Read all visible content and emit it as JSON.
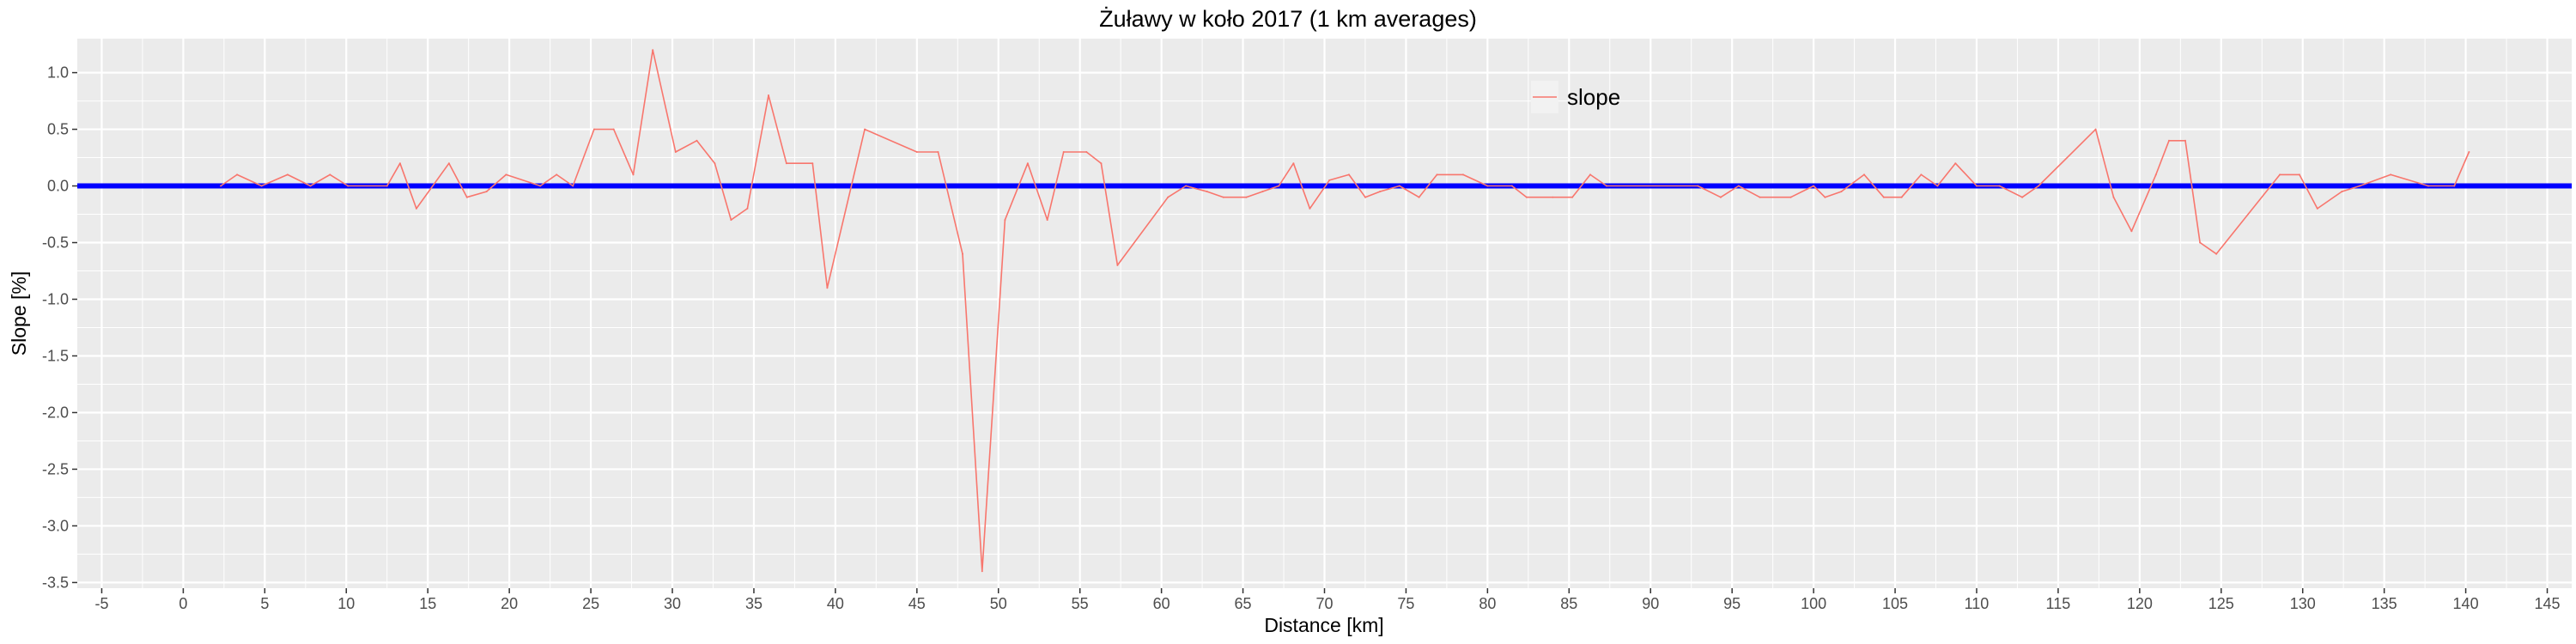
{
  "chart_data": {
    "type": "line",
    "title": "Żuławy w koło 2017 (1 km averages)",
    "xlabel": "Distance [km]",
    "ylabel": "Slope [%]",
    "xlim": [
      -6.5,
      146.5
    ],
    "ylim": [
      -3.55,
      1.3
    ],
    "x_ticks": [
      -5,
      0,
      5,
      10,
      15,
      20,
      25,
      30,
      35,
      40,
      45,
      50,
      55,
      60,
      65,
      70,
      75,
      80,
      85,
      90,
      95,
      100,
      105,
      110,
      115,
      120,
      125,
      130,
      135,
      140,
      145
    ],
    "y_ticks": [
      1.0,
      0.5,
      0.0,
      -0.5,
      -1.0,
      -1.5,
      -2.0,
      -2.5,
      -3.0,
      -3.5
    ],
    "y_tick_labels": [
      "1.0",
      "0.5",
      "0.0",
      "-0.5",
      "-1.0",
      "-1.5",
      "-2.0",
      "-2.5",
      "-3.0",
      "-3.5"
    ],
    "grid": true,
    "legend_position": "top-center",
    "reference_line": {
      "y": 0,
      "color": "#0000ff"
    },
    "series": [
      {
        "name": "slope",
        "color": "#f8766d",
        "points": [
          [
            2.3,
            0.0
          ],
          [
            3.3,
            0.1
          ],
          [
            4.8,
            0.0
          ],
          [
            6.4,
            0.1
          ],
          [
            7.8,
            0.0
          ],
          [
            9.0,
            0.1
          ],
          [
            10.1,
            0.0
          ],
          [
            12.5,
            0.0
          ],
          [
            13.3,
            0.2
          ],
          [
            14.3,
            -0.2
          ],
          [
            16.3,
            0.2
          ],
          [
            17.4,
            -0.1
          ],
          [
            18.6,
            -0.05
          ],
          [
            19.8,
            0.1
          ],
          [
            21.9,
            0.0
          ],
          [
            22.9,
            0.1
          ],
          [
            23.9,
            0.0
          ],
          [
            25.2,
            0.5
          ],
          [
            26.4,
            0.5
          ],
          [
            27.6,
            0.1
          ],
          [
            28.8,
            1.2
          ],
          [
            30.2,
            0.3
          ],
          [
            31.5,
            0.4
          ],
          [
            32.6,
            0.2
          ],
          [
            33.6,
            -0.3
          ],
          [
            34.6,
            -0.2
          ],
          [
            35.9,
            0.8
          ],
          [
            37.0,
            0.2
          ],
          [
            38.6,
            0.2
          ],
          [
            39.5,
            -0.9
          ],
          [
            41.8,
            0.5
          ],
          [
            45.0,
            0.3
          ],
          [
            46.3,
            0.3
          ],
          [
            47.8,
            -0.6
          ],
          [
            49.0,
            -3.4
          ],
          [
            50.4,
            -0.3
          ],
          [
            51.8,
            0.2
          ],
          [
            53.0,
            -0.3
          ],
          [
            54.0,
            0.3
          ],
          [
            55.4,
            0.3
          ],
          [
            56.3,
            0.2
          ],
          [
            57.3,
            -0.7
          ],
          [
            60.4,
            -0.1
          ],
          [
            61.5,
            0.0
          ],
          [
            62.8,
            -0.05
          ],
          [
            63.8,
            -0.1
          ],
          [
            65.2,
            -0.1
          ],
          [
            66.2,
            -0.05
          ],
          [
            67.2,
            0.0
          ],
          [
            68.1,
            0.2
          ],
          [
            69.1,
            -0.2
          ],
          [
            70.3,
            0.05
          ],
          [
            71.5,
            0.1
          ],
          [
            72.5,
            -0.1
          ],
          [
            73.4,
            -0.05
          ],
          [
            74.6,
            0.0
          ],
          [
            75.8,
            -0.1
          ],
          [
            76.9,
            0.1
          ],
          [
            78.5,
            0.1
          ],
          [
            80.0,
            0.0
          ],
          [
            81.5,
            0.0
          ],
          [
            82.4,
            -0.1
          ],
          [
            84.0,
            -0.1
          ],
          [
            85.2,
            -0.1
          ],
          [
            86.3,
            0.1
          ],
          [
            87.3,
            0.0
          ],
          [
            92.9,
            0.0
          ],
          [
            94.3,
            -0.1
          ],
          [
            95.4,
            0.0
          ],
          [
            96.7,
            -0.1
          ],
          [
            98.6,
            -0.1
          ],
          [
            100.0,
            0.0
          ],
          [
            100.7,
            -0.1
          ],
          [
            101.7,
            -0.05
          ],
          [
            103.1,
            0.1
          ],
          [
            104.3,
            -0.1
          ],
          [
            105.4,
            -0.1
          ],
          [
            106.6,
            0.1
          ],
          [
            107.6,
            0.0
          ],
          [
            108.7,
            0.2
          ],
          [
            110.0,
            0.0
          ],
          [
            111.4,
            0.0
          ],
          [
            112.8,
            -0.1
          ],
          [
            113.8,
            0.0
          ],
          [
            117.3,
            0.5
          ],
          [
            118.4,
            -0.1
          ],
          [
            119.5,
            -0.4
          ],
          [
            121.0,
            0.1
          ],
          [
            121.8,
            0.4
          ],
          [
            122.8,
            0.4
          ],
          [
            123.7,
            -0.5
          ],
          [
            124.7,
            -0.6
          ],
          [
            128.6,
            0.1
          ],
          [
            129.8,
            0.1
          ],
          [
            130.9,
            -0.2
          ],
          [
            132.4,
            -0.05
          ],
          [
            133.5,
            0.0
          ],
          [
            135.4,
            0.1
          ],
          [
            137.7,
            0.0
          ],
          [
            139.3,
            0.0
          ],
          [
            140.2,
            0.3
          ]
        ]
      }
    ]
  }
}
